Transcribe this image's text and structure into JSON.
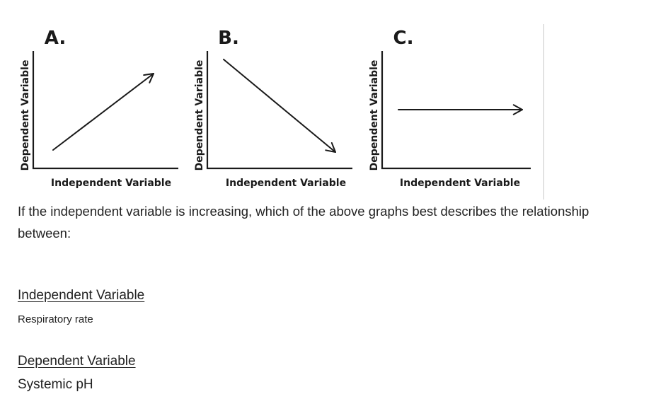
{
  "chart_data": [
    {
      "type": "line",
      "panel_label": "A.",
      "xlabel": "Independent Variable",
      "ylabel": "Dependent Variable",
      "trend": "increasing",
      "series": [
        {
          "x": [
            0,
            1
          ],
          "y": [
            0,
            1
          ]
        }
      ]
    },
    {
      "type": "line",
      "panel_label": "B.",
      "xlabel": "Independent Variable",
      "ylabel": "Dependent Variable",
      "trend": "decreasing",
      "series": [
        {
          "x": [
            0,
            1
          ],
          "y": [
            1,
            0
          ]
        }
      ]
    },
    {
      "type": "line",
      "panel_label": "C.",
      "xlabel": "Independent Variable",
      "ylabel": "Dependent Variable",
      "trend": "constant",
      "series": [
        {
          "x": [
            0,
            1
          ],
          "y": [
            0.5,
            0.5
          ]
        }
      ]
    }
  ],
  "question": "If the independent variable is increasing, which of the above graphs best describes the relationship between:",
  "independent": {
    "heading": "Independent Variable",
    "value": "Respiratory rate"
  },
  "dependent": {
    "heading": "Dependent Variable",
    "value": "Systemic pH"
  },
  "colors": {
    "line": "#1a1a1a",
    "text": "#222222",
    "divider": "#c8c8c8"
  }
}
